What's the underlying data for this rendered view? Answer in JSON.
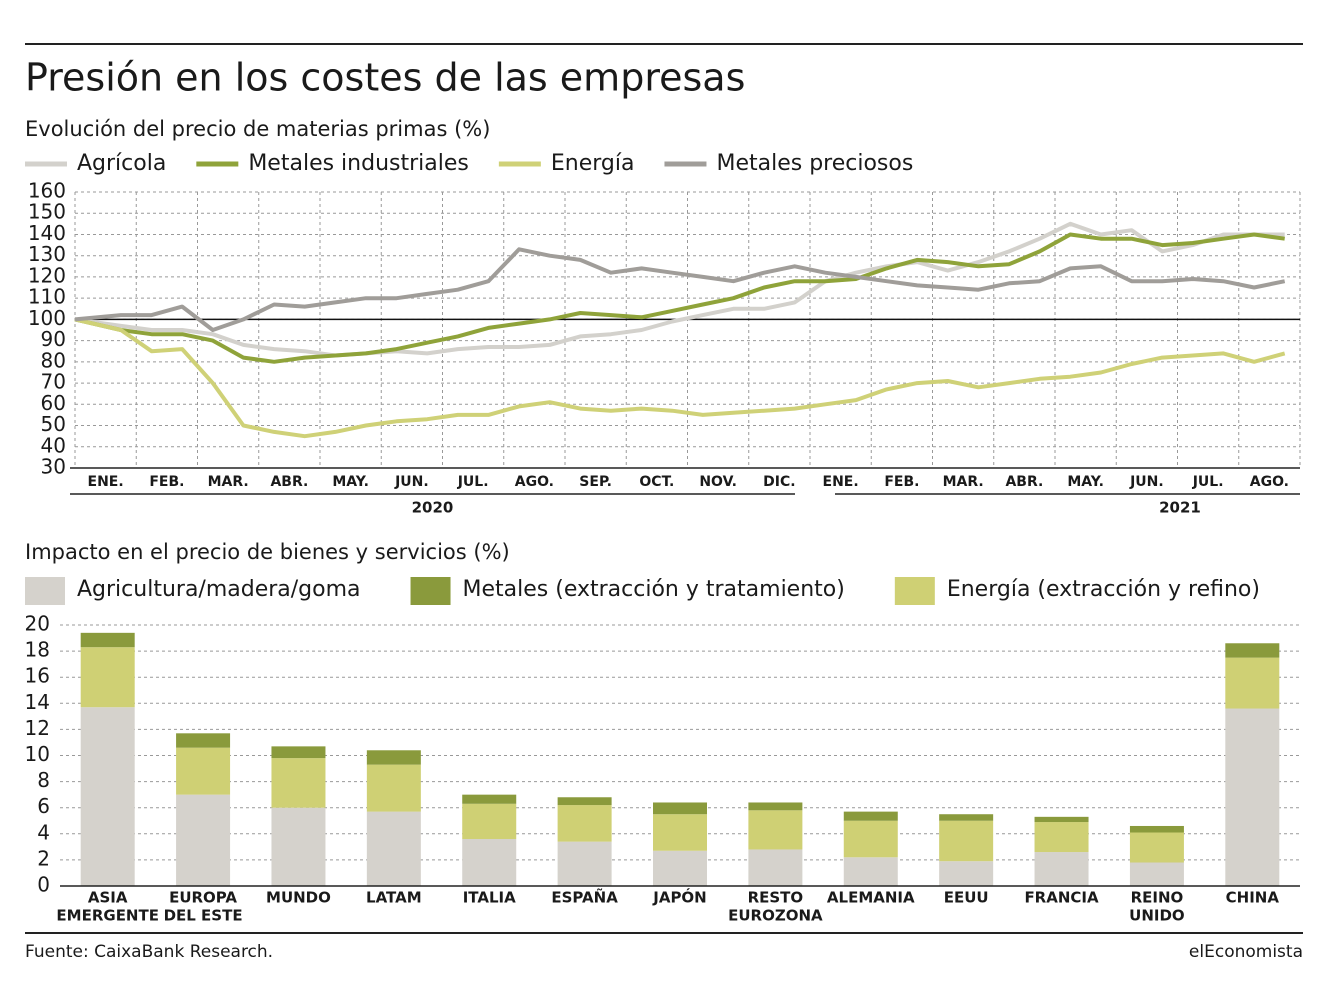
{
  "header": {
    "title": "Presión en los costes de las empresas"
  },
  "chart_data": [
    {
      "type": "line",
      "title": "Evolución del precio de materias primas (%)",
      "categories": [
        "ENE.",
        null,
        "FEB.",
        null,
        "MAR.",
        null,
        "ABR.",
        null,
        "MAY.",
        null,
        "JUN.",
        null,
        "JUL.",
        null,
        "AGO.",
        null,
        "SEP.",
        null,
        "OCT.",
        null,
        "NOV.",
        null,
        "DIC.",
        null,
        "ENE.",
        null,
        "FEB.",
        null,
        "MAR.",
        null,
        "ABR.",
        null,
        "MAY.",
        null,
        "JUN.",
        null,
        "JUL.",
        null,
        "AGO.",
        null
      ],
      "years": [
        "2020",
        "2021"
      ],
      "series": [
        {
          "name": "Agrícola",
          "color": "#d3d1cc",
          "values": [
            100,
            97,
            95,
            95,
            93,
            88,
            86,
            85,
            83,
            84,
            85,
            84,
            86,
            87,
            87,
            88,
            92,
            93,
            95,
            99,
            102,
            105,
            105,
            108,
            118,
            122,
            125,
            127,
            123,
            127,
            132,
            138,
            145,
            140,
            142,
            132,
            135,
            140,
            140,
            140
          ]
        },
        {
          "name": "Metales industriales",
          "color": "#8fa33a",
          "values": [
            100,
            95,
            93,
            93,
            90,
            82,
            80,
            82,
            83,
            84,
            86,
            89,
            92,
            96,
            98,
            100,
            103,
            102,
            101,
            104,
            107,
            110,
            115,
            118,
            118,
            119,
            124,
            128,
            127,
            125,
            126,
            132,
            140,
            138,
            138,
            135,
            136,
            138,
            140,
            138
          ]
        },
        {
          "name": "Energía",
          "color": "#cfd177",
          "values": [
            100,
            95,
            85,
            86,
            70,
            50,
            47,
            45,
            47,
            50,
            52,
            53,
            55,
            55,
            59,
            61,
            58,
            57,
            58,
            57,
            55,
            56,
            57,
            58,
            60,
            62,
            67,
            70,
            71,
            68,
            70,
            72,
            73,
            75,
            79,
            82,
            83,
            84,
            80,
            84
          ]
        },
        {
          "name": "Metales preciosos",
          "color": "#a09d99",
          "values": [
            100,
            102,
            102,
            106,
            95,
            100,
            107,
            106,
            108,
            110,
            110,
            112,
            114,
            118,
            133,
            130,
            128,
            122,
            124,
            122,
            120,
            118,
            122,
            125,
            122,
            120,
            118,
            116,
            115,
            114,
            117,
            118,
            124,
            125,
            118,
            118,
            119,
            118,
            115,
            118
          ]
        }
      ],
      "ylim": [
        30,
        160
      ],
      "yticks": [
        30,
        40,
        50,
        60,
        70,
        80,
        90,
        100,
        110,
        120,
        130,
        140,
        150,
        160
      ],
      "reference_line": 100,
      "grid": true
    },
    {
      "type": "stacked_bar",
      "title": "Impacto en el precio de bienes y servicios (%)",
      "categories": [
        [
          "ASIA",
          "EMERGENTE"
        ],
        [
          "EUROPA",
          "DEL ESTE"
        ],
        [
          "MUNDO"
        ],
        [
          "LATAM"
        ],
        [
          "ITALIA"
        ],
        [
          "ESPAÑA"
        ],
        [
          "JAPÓN"
        ],
        [
          "RESTO",
          "EUROZONA"
        ],
        [
          "ALEMANIA"
        ],
        [
          "EEUU"
        ],
        [
          "FRANCIA"
        ],
        [
          "REINO",
          "UNIDO"
        ],
        [
          "CHINA"
        ]
      ],
      "series": [
        {
          "name": "Agricultura/madera/goma",
          "color": "#d5d2cc",
          "values": [
            13.7,
            7.0,
            6.0,
            5.7,
            3.6,
            3.4,
            2.7,
            2.8,
            2.2,
            1.9,
            2.6,
            1.8,
            13.6
          ]
        },
        {
          "name": "Metales (extracción y tratamiento)",
          "color": "#8a9a3c",
          "values": [
            1.1,
            1.1,
            0.9,
            1.1,
            0.7,
            0.6,
            0.9,
            0.6,
            0.7,
            0.5,
            0.4,
            0.5,
            1.1
          ]
        },
        {
          "name": "Energía (extracción y refino)",
          "color": "#cfd074",
          "values": [
            4.6,
            3.6,
            3.8,
            3.6,
            2.7,
            2.8,
            2.8,
            3.0,
            2.8,
            3.1,
            2.3,
            2.3,
            3.9
          ]
        }
      ],
      "ylim": [
        0,
        20
      ],
      "yticks": [
        0,
        2,
        4,
        6,
        8,
        10,
        12,
        14,
        16,
        18,
        20
      ],
      "grid": true
    }
  ],
  "footer": {
    "source": "Fuente: CaixaBank Research.",
    "brand": "elEconomista"
  }
}
